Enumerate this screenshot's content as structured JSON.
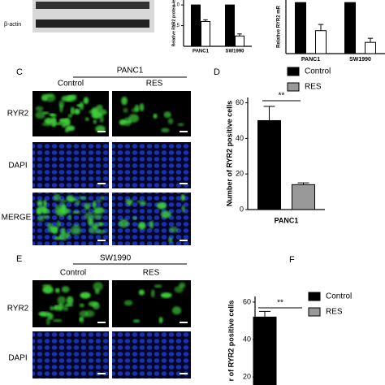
{
  "figure": {
    "blot_label": "β-actin",
    "panel_c": {
      "letter": "C",
      "cell_line": "PANC1",
      "conditions": [
        "Control",
        "RES"
      ],
      "rows": [
        "RYR2",
        "DAPI",
        "MERGE"
      ]
    },
    "panel_d": {
      "letter": "D"
    },
    "panel_e": {
      "letter": "E",
      "cell_line": "SW1990",
      "conditions": [
        "Control",
        "RES"
      ],
      "rows": [
        "RYR2",
        "DAPI"
      ]
    },
    "panel_f": {
      "letter": "F"
    }
  },
  "chart_data": [
    {
      "type": "bar",
      "y_label": "Relative RYR2 protein le",
      "categories": [
        "PANC1",
        "SW1990"
      ],
      "series": [
        {
          "name": "Control",
          "color": "#000000",
          "values": [
            1.0,
            1.0
          ]
        },
        {
          "name": "RES",
          "color": "#ffffff",
          "values": [
            0.6,
            0.25
          ],
          "errors": [
            0.04,
            0.05
          ]
        }
      ],
      "ylim": [
        0,
        1.12
      ],
      "yticks": [
        {
          "value": 1,
          "label": "1.0"
        },
        {
          "value": 0.5,
          "label": "0.5"
        }
      ]
    },
    {
      "type": "bar",
      "y_label": "Relative RYR2 mR",
      "categories": [
        "PANC1",
        "SW1990"
      ],
      "series": [
        {
          "name": "Control",
          "color": "#000000",
          "values": [
            1.0,
            1.0
          ]
        },
        {
          "name": "RES",
          "color": "#ffffff",
          "values": [
            0.45,
            0.22
          ],
          "errors": [
            0.12,
            0.08
          ]
        }
      ],
      "ylim": [
        0,
        1.05
      ],
      "yticks": []
    },
    {
      "type": "bar",
      "y_label": "Number of RYR2 positive cells",
      "categories": [
        "PANC1"
      ],
      "series": [
        {
          "name": "Control",
          "color": "#000000",
          "values": [
            50
          ],
          "errors": [
            8
          ]
        },
        {
          "name": "RES",
          "color": "#999999",
          "values": [
            14
          ],
          "errors": [
            1
          ]
        }
      ],
      "ylim": [
        0,
        63
      ],
      "yticks": [
        0,
        20,
        40,
        60
      ],
      "annotation": "**",
      "legend": "top-right"
    },
    {
      "type": "bar",
      "y_label": "r of RYR2 positive cells",
      "categories": [
        null
      ],
      "series": [
        {
          "name": "Control",
          "color": "#000000",
          "values": [
            52
          ],
          "errors": [
            3
          ]
        },
        {
          "name": "RES",
          "color": "#999999",
          "values": [
            null
          ]
        }
      ],
      "ylim": [
        15.7,
        63
      ],
      "yticks": [
        20,
        40,
        60
      ],
      "annotation": "**",
      "legend": "top-right"
    }
  ]
}
